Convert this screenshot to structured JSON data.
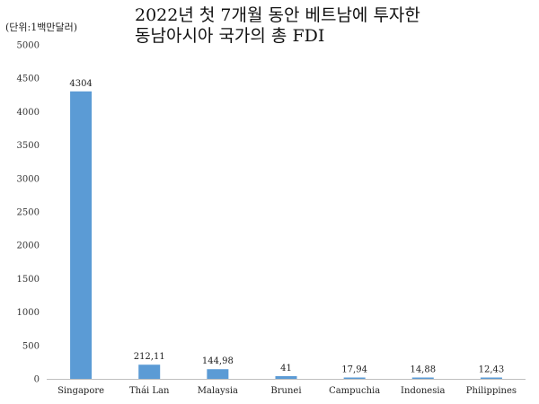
{
  "chart_data": {
    "type": "bar",
    "title_line1": "2022년 첫 7개월 동안 베트남에 투자한",
    "title_line2": "동남아시아 국가의 총 FDI",
    "unit_label": "(단위:1백만달러)",
    "categories": [
      "Singapore",
      "Thái Lan",
      "Malaysia",
      "Brunei",
      "Campuchia",
      "Indonesia",
      "Philippines"
    ],
    "values": [
      4304,
      212.11,
      144.98,
      41,
      17.94,
      14.88,
      12.43
    ],
    "value_labels": [
      "4304",
      "212,11",
      "144,98",
      "41",
      "17,94",
      "14,88",
      "12,43"
    ],
    "yticks": [
      "0",
      "500",
      "1000",
      "1500",
      "2000",
      "2500",
      "3000",
      "3500",
      "4000",
      "4500",
      "5000"
    ],
    "ylim": [
      0,
      5000
    ],
    "grid": false,
    "legend": "none",
    "bar_color": "#5B9BD5"
  }
}
